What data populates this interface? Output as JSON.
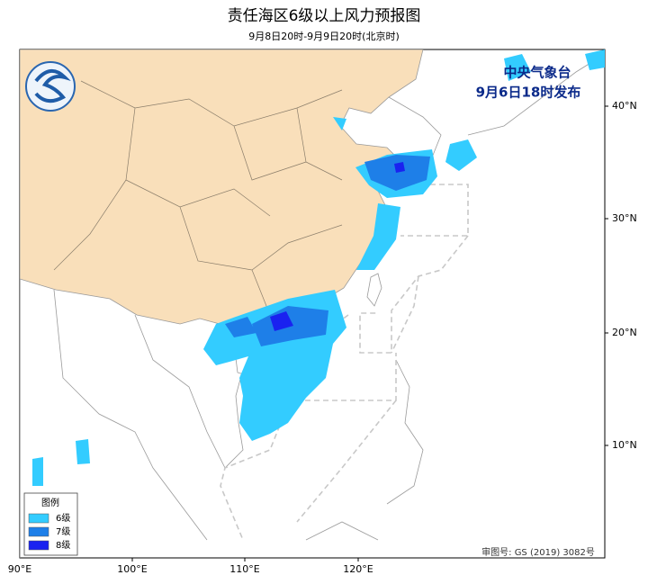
{
  "header": {
    "title": "责任海区6级以上风力预报图",
    "subtitle": "9月8日20时-9月9日20时(北京时)"
  },
  "issuer": {
    "agency": "中央气象台",
    "issued": "9月6日18时发布"
  },
  "legend": {
    "title": "图例",
    "items": [
      {
        "label": "6级",
        "color": "#33ccff"
      },
      {
        "label": "7级",
        "color": "#1e7fe8"
      },
      {
        "label": "8级",
        "color": "#1a22f0"
      }
    ]
  },
  "axes": {
    "longitude": [
      "90°E",
      "100°E",
      "110°E",
      "120°E"
    ],
    "latitude": [
      "40°N",
      "30°N",
      "20°N",
      "10°N"
    ]
  },
  "footer": {
    "approval": "审图号: GS (2019) 3082号"
  }
}
